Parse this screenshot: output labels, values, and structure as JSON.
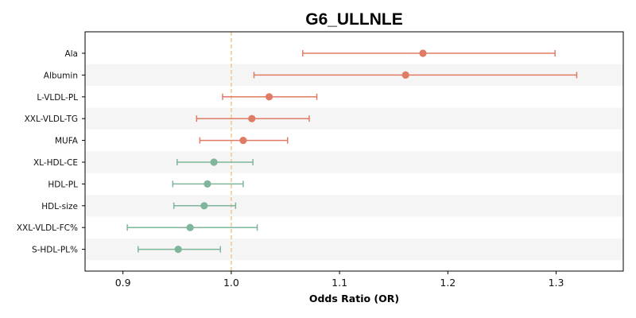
{
  "chart_data": {
    "type": "forest",
    "title": "G6_ULLNLE",
    "xlabel": "Odds Ratio (OR)",
    "xlim": [
      0.865,
      1.362
    ],
    "xticks": [
      0.9,
      1.0,
      1.1,
      1.2,
      1.3
    ],
    "xtick_labels": [
      "0.9",
      "1.0",
      "1.1",
      "1.2",
      "1.3"
    ],
    "reference_line": 1.0,
    "colors": {
      "positive": "#e07b65",
      "negative": "#7fb59b",
      "reference": "#f4c48a",
      "band": "#f5f5f5"
    },
    "rows": [
      {
        "label": "Ala",
        "or": 1.177,
        "lower": 1.066,
        "upper": 1.299
      },
      {
        "label": "Albumin",
        "or": 1.161,
        "lower": 1.021,
        "upper": 1.319
      },
      {
        "label": "L-VLDL-PL",
        "or": 1.035,
        "lower": 0.992,
        "upper": 1.079
      },
      {
        "label": "XXL-VLDL-TG",
        "or": 1.019,
        "lower": 0.968,
        "upper": 1.072
      },
      {
        "label": "MUFA",
        "or": 1.011,
        "lower": 0.971,
        "upper": 1.052
      },
      {
        "label": "XL-HDL-CE",
        "or": 0.984,
        "lower": 0.95,
        "upper": 1.02
      },
      {
        "label": "HDL-PL",
        "or": 0.978,
        "lower": 0.946,
        "upper": 1.011
      },
      {
        "label": "HDL-size",
        "or": 0.975,
        "lower": 0.947,
        "upper": 1.004
      },
      {
        "label": "XXL-VLDL-FC%",
        "or": 0.962,
        "lower": 0.904,
        "upper": 1.024
      },
      {
        "label": "S-HDL-PL%",
        "or": 0.951,
        "lower": 0.914,
        "upper": 0.99
      }
    ]
  }
}
